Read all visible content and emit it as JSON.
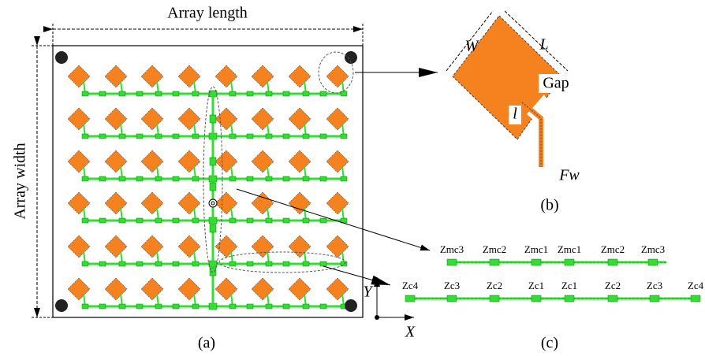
{
  "panel_a": {
    "top_label": "Array length",
    "side_label": "Array width",
    "caption": "(a)"
  },
  "panel_b": {
    "labels": {
      "width": "W",
      "length": "L",
      "gap": "Gap",
      "inset": "l",
      "feed_width": "Fw"
    },
    "caption": "(b)"
  },
  "panel_c": {
    "row1": [
      "Zmc3",
      "Zmc2",
      "Zmc1",
      "Zmc1",
      "Zmc2",
      "Zmc3"
    ],
    "row2": [
      "Zc4",
      "Zc3",
      "Zc2",
      "Zc1",
      "Zc1",
      "Zc2",
      "Zc3",
      "Zc4"
    ],
    "caption": "(c)"
  },
  "axes": {
    "x": "X",
    "y": "Y"
  }
}
